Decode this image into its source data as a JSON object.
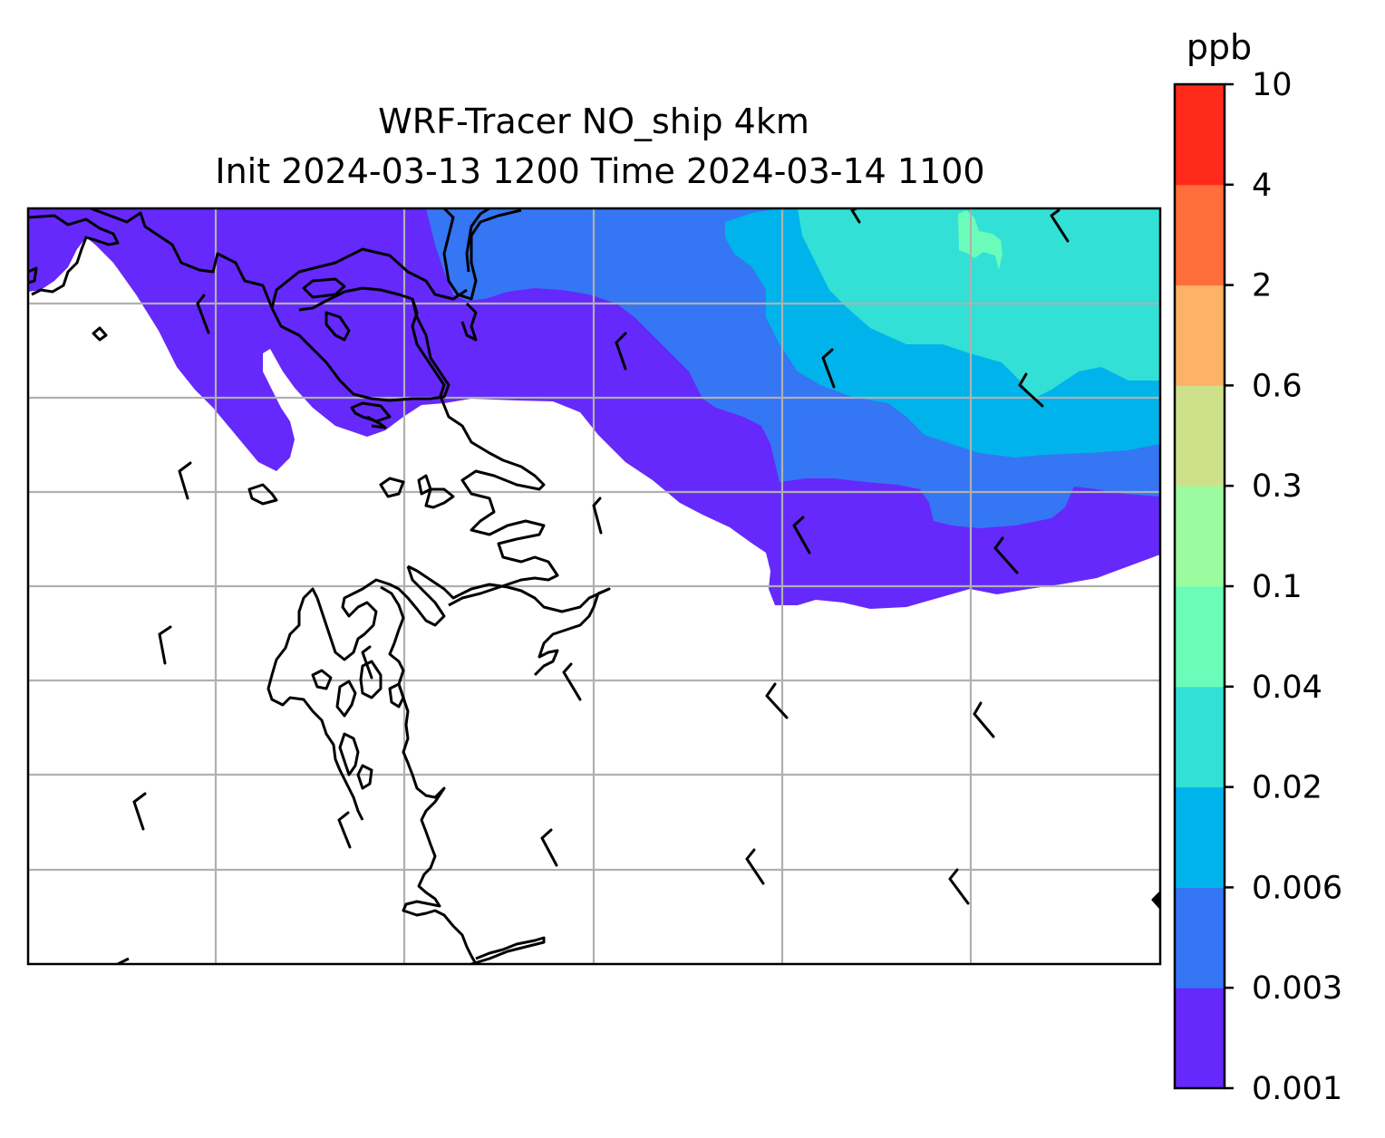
{
  "title": {
    "line1": "WRF-Tracer NO_ship 4km",
    "line2": "Init 2024-03-13 1200 Time 2024-03-14 1100"
  },
  "colorbar": {
    "unit": "ppb",
    "levels": [
      "0.001",
      "0.003",
      "0.006",
      "0.02",
      "0.04",
      "0.1",
      "0.3",
      "0.6",
      "2",
      "4",
      "10"
    ],
    "colors": [
      "#6529fb",
      "#3476f4",
      "#00b4eb",
      "#32e0d6",
      "#6bfcb9",
      "#9bfc9f",
      "#cfe08a",
      "#fdb265",
      "#ff6d3b",
      "#ff2a1a"
    ]
  },
  "map": {
    "gridlines": true,
    "grid_color": "#b0b0b0",
    "coastline_color": "#000000",
    "wind_barb_color": "#000000"
  },
  "chart_data": {
    "type": "heatmap",
    "title": "WRF-Tracer NO_ship 4km / Init 2024-03-13 1200 Time 2024-03-14 1100",
    "variable": "NO_ship",
    "units": "ppb",
    "levels": [
      0.001,
      0.003,
      0.006,
      0.02,
      0.04,
      0.1,
      0.3,
      0.6,
      2,
      4,
      10
    ],
    "max_level_shown_in_map": "0.04-0.1 (small patch, upper right)",
    "pattern": "Concentrations increase from southwest (below 0.001, white) to northeast (0.02-0.04)"
  }
}
